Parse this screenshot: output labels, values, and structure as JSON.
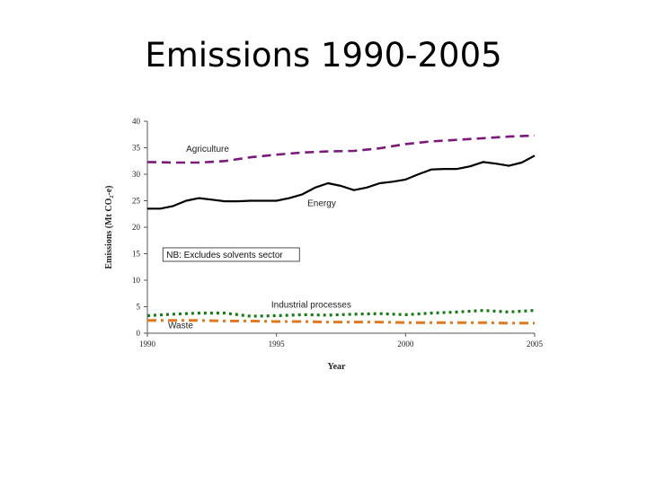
{
  "page": {
    "title": "Emissions 1990-2005"
  },
  "chart_data": {
    "type": "line",
    "title": "Emissions 1990-2005",
    "xlabel": "Year",
    "ylabel": "Emissions (Mt CO₂-e)",
    "xlim": [
      1990,
      2005
    ],
    "ylim": [
      0,
      40
    ],
    "x_ticks": [
      1990,
      1995,
      2000,
      2005
    ],
    "y_ticks": [
      0,
      5,
      10,
      15,
      20,
      25,
      30,
      35,
      40
    ],
    "note": "NB: Excludes solvents sector",
    "series": [
      {
        "name": "Agriculture",
        "color": "#7b1a7b",
        "style": "dashed",
        "x": [
          1990,
          1991,
          1992,
          1993,
          1994,
          1995,
          1996,
          1997,
          1998,
          1999,
          2000,
          2001,
          2002,
          2003,
          2004,
          2005
        ],
        "values": [
          32.3,
          32.2,
          32.2,
          32.5,
          33.2,
          33.7,
          34.1,
          34.3,
          34.4,
          34.9,
          35.7,
          36.2,
          36.5,
          36.8,
          37.1,
          37.3
        ]
      },
      {
        "name": "Energy",
        "color": "#000000",
        "style": "solid",
        "x": [
          1990,
          1990.5,
          1991,
          1991.5,
          1992,
          1992.5,
          1993,
          1993.5,
          1994,
          1994.5,
          1995,
          1995.5,
          1996,
          1996.5,
          1997,
          1997.5,
          1998,
          1998.5,
          1999,
          1999.5,
          2000,
          2000.5,
          2001,
          2001.5,
          2002,
          2002.5,
          2003,
          2003.5,
          2004,
          2004.5,
          2005
        ],
        "values": [
          23.5,
          23.5,
          24.0,
          25.0,
          25.5,
          25.2,
          24.9,
          24.9,
          25.0,
          25.0,
          25.0,
          25.5,
          26.2,
          27.5,
          28.3,
          27.8,
          27.0,
          27.5,
          28.3,
          28.6,
          29.0,
          30.0,
          30.9,
          31.0,
          31.0,
          31.5,
          32.3,
          32.0,
          31.6,
          32.2,
          33.5
        ]
      },
      {
        "name": "Industrial processes",
        "color": "#1a7a1a",
        "style": "dotted",
        "x": [
          1990,
          1991,
          1992,
          1993,
          1994,
          1995,
          1996,
          1997,
          1998,
          1999,
          2000,
          2001,
          2002,
          2003,
          2004,
          2005
        ],
        "values": [
          3.3,
          3.6,
          3.8,
          3.8,
          3.2,
          3.3,
          3.5,
          3.4,
          3.6,
          3.7,
          3.5,
          3.8,
          4.0,
          4.3,
          4.0,
          4.3
        ]
      },
      {
        "name": "Waste",
        "color": "#e07820",
        "style": "dashdot",
        "x": [
          1990,
          1991,
          1992,
          1993,
          1994,
          1995,
          1996,
          1997,
          1998,
          1999,
          2000,
          2001,
          2002,
          2003,
          2004,
          2005
        ],
        "values": [
          2.4,
          2.4,
          2.4,
          2.3,
          2.3,
          2.2,
          2.2,
          2.1,
          2.1,
          2.1,
          2.0,
          2.0,
          2.0,
          2.0,
          1.9,
          1.9
        ]
      }
    ]
  }
}
